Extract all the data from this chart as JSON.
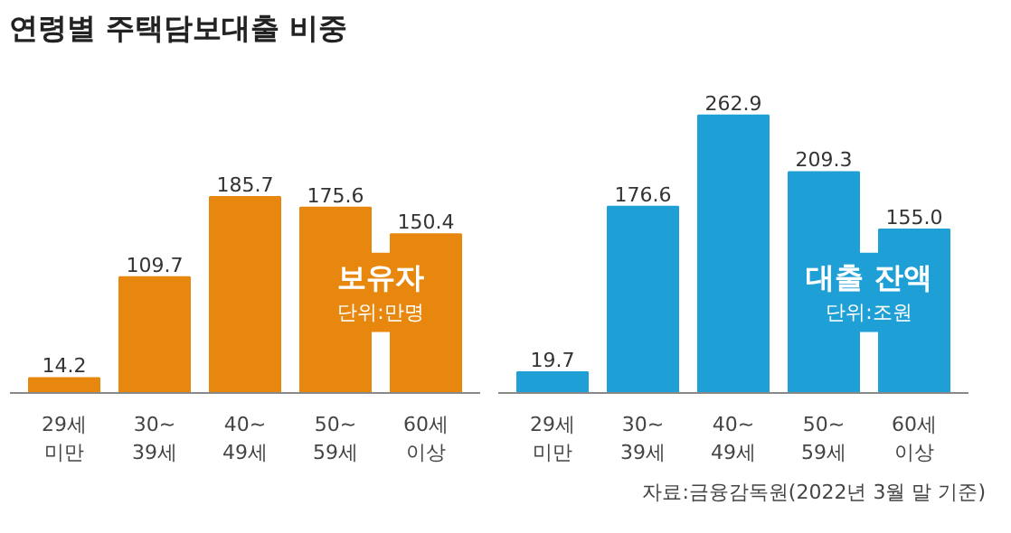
{
  "chart_data": [
    {
      "type": "bar",
      "title": "연령별 주택담보대출 비중",
      "categories": [
        "29세\n미만",
        "30~\n39세",
        "40~\n49세",
        "50~\n59세",
        "60세\n이상"
      ],
      "values": [
        14.2,
        109.7,
        185.7,
        175.6,
        150.4
      ],
      "value_labels": [
        "14.2",
        "109.7",
        "185.7",
        "175.6",
        "150.4"
      ],
      "color": "#e8870e",
      "annotations": [
        "보유자",
        "단위:만명"
      ]
    },
    {
      "type": "bar",
      "categories": [
        "29세\n미만",
        "30~\n39세",
        "40~\n49세",
        "50~\n59세",
        "60세\n이상"
      ],
      "values": [
        19.7,
        176.6,
        262.9,
        209.3,
        155.0
      ],
      "value_labels": [
        "19.7",
        "176.6",
        "262.9",
        "209.3",
        "155.0"
      ],
      "color": "#1ea0d6",
      "annotations": [
        "대출 잔액",
        "단위:조원",
        "자료:금융감독원(2022년 3월 말 기준)"
      ]
    }
  ]
}
